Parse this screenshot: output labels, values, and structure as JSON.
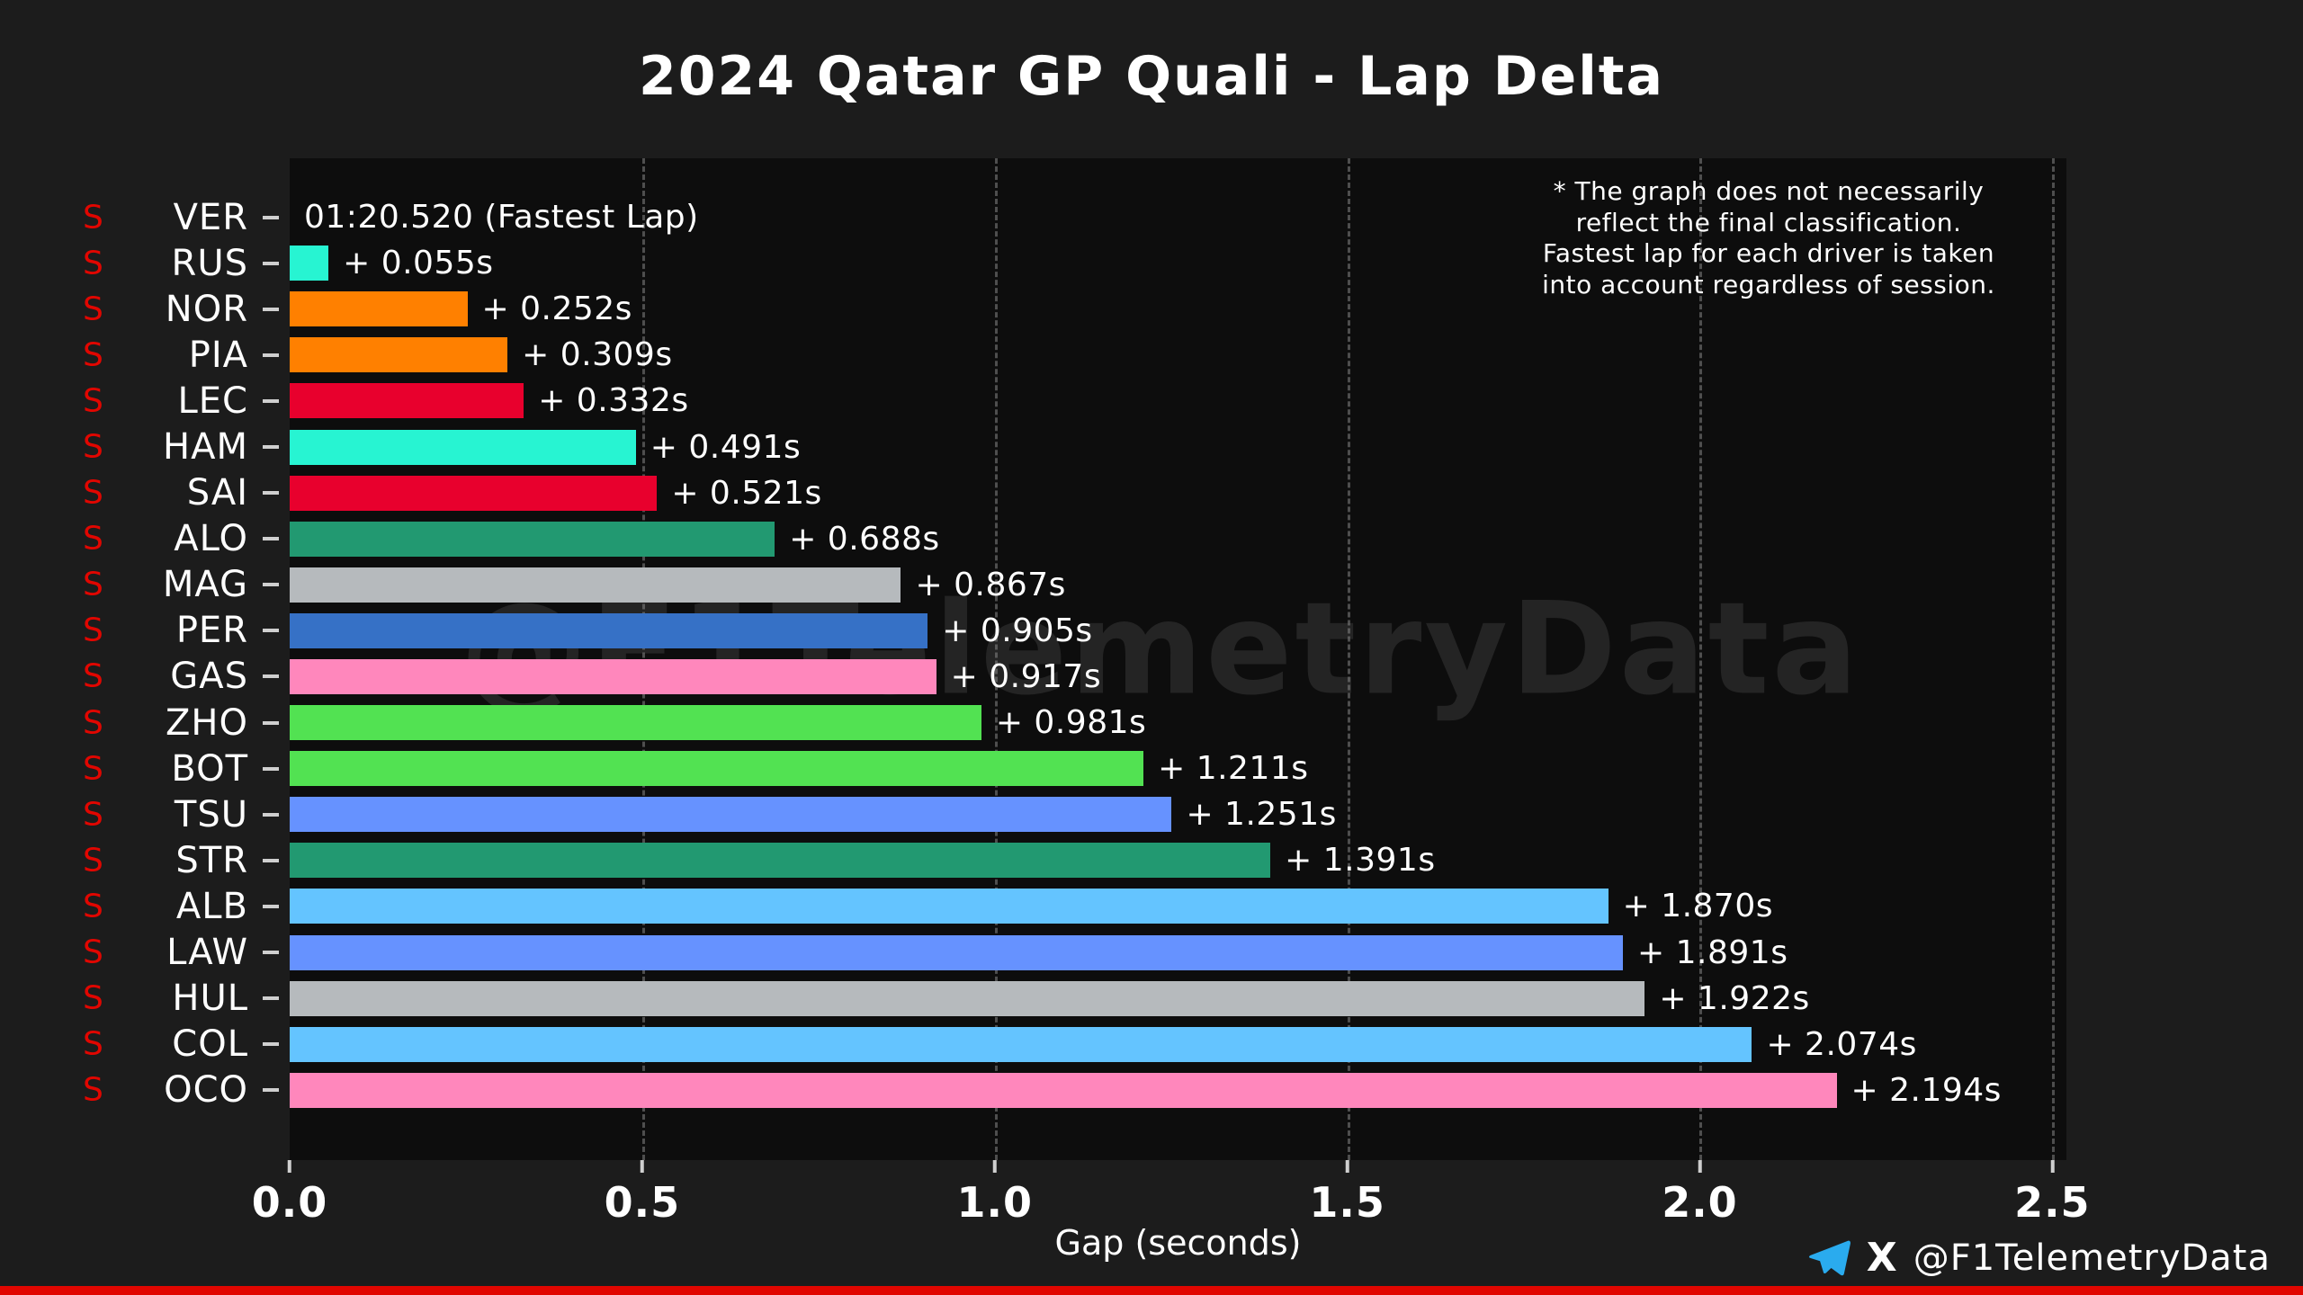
{
  "page": {
    "title": "2024 Qatar GP Quali - Lap Delta",
    "watermark": "@F1TelemetryData",
    "xlabel": "Gap (seconds)",
    "annotation_lines": [
      "* The graph does not necessarily",
      "reflect the final classification.",
      "Fastest lap for each driver is taken",
      "into account regardless of session."
    ],
    "footer": {
      "telegram_icon": "telegram-paper-plane",
      "x_icon": "x-logo",
      "x_label": "X",
      "handle": "@F1TelemetryData"
    },
    "colors": {
      "background": "#1c1c1c",
      "plot_background": "#0d0d0d",
      "accent_red": "#e10600",
      "telegram_blue": "#2AABEE",
      "grid": "#4e4e4e",
      "text": "#ffffff"
    }
  },
  "chart_data": {
    "type": "bar",
    "orientation": "horizontal",
    "title": "2024 Qatar GP Quali - Lap Delta",
    "xlabel": "Gap (seconds)",
    "xlim": [
      0,
      2.52
    ],
    "x_ticks": [
      0,
      0.5,
      1,
      1.5,
      2,
      2.5
    ],
    "x_tick_labels": [
      "0.0",
      "0.5",
      "1.0",
      "1.5",
      "2.0",
      "2.5"
    ],
    "grid": "vertical-dashed",
    "fastest_lap": "01:20.520",
    "drivers": [
      {
        "code": "VER",
        "tyre": "S",
        "delta": 0.0,
        "label": "01:20.520 (Fastest Lap)",
        "color": "#3671C6"
      },
      {
        "code": "RUS",
        "tyre": "S",
        "delta": 0.055,
        "label": "+ 0.055s",
        "color": "#27F4D2"
      },
      {
        "code": "NOR",
        "tyre": "S",
        "delta": 0.252,
        "label": "+ 0.252s",
        "color": "#FF8000"
      },
      {
        "code": "PIA",
        "tyre": "S",
        "delta": 0.309,
        "label": "+ 0.309s",
        "color": "#FF8000"
      },
      {
        "code": "LEC",
        "tyre": "S",
        "delta": 0.332,
        "label": "+ 0.332s",
        "color": "#E8002D"
      },
      {
        "code": "HAM",
        "tyre": "S",
        "delta": 0.491,
        "label": "+ 0.491s",
        "color": "#27F4D2"
      },
      {
        "code": "SAI",
        "tyre": "S",
        "delta": 0.521,
        "label": "+ 0.521s",
        "color": "#E8002D"
      },
      {
        "code": "ALO",
        "tyre": "S",
        "delta": 0.688,
        "label": "+ 0.688s",
        "color": "#229971"
      },
      {
        "code": "MAG",
        "tyre": "S",
        "delta": 0.867,
        "label": "+ 0.867s",
        "color": "#B6BABD"
      },
      {
        "code": "PER",
        "tyre": "S",
        "delta": 0.905,
        "label": "+ 0.905s",
        "color": "#3671C6"
      },
      {
        "code": "GAS",
        "tyre": "S",
        "delta": 0.917,
        "label": "+ 0.917s",
        "color": "#FF87BC"
      },
      {
        "code": "ZHO",
        "tyre": "S",
        "delta": 0.981,
        "label": "+ 0.981s",
        "color": "#52E252"
      },
      {
        "code": "BOT",
        "tyre": "S",
        "delta": 1.211,
        "label": "+ 1.211s",
        "color": "#52E252"
      },
      {
        "code": "TSU",
        "tyre": "S",
        "delta": 1.251,
        "label": "+ 1.251s",
        "color": "#6692FF"
      },
      {
        "code": "STR",
        "tyre": "S",
        "delta": 1.391,
        "label": "+ 1.391s",
        "color": "#229971"
      },
      {
        "code": "ALB",
        "tyre": "S",
        "delta": 1.87,
        "label": "+ 1.870s",
        "color": "#64C4FF"
      },
      {
        "code": "LAW",
        "tyre": "S",
        "delta": 1.891,
        "label": "+ 1.891s",
        "color": "#6692FF"
      },
      {
        "code": "HUL",
        "tyre": "S",
        "delta": 1.922,
        "label": "+ 1.922s",
        "color": "#B6BABD"
      },
      {
        "code": "COL",
        "tyre": "S",
        "delta": 2.074,
        "label": "+ 2.074s",
        "color": "#64C4FF"
      },
      {
        "code": "OCO",
        "tyre": "S",
        "delta": 2.194,
        "label": "+ 2.194s",
        "color": "#FF87BC"
      }
    ]
  }
}
